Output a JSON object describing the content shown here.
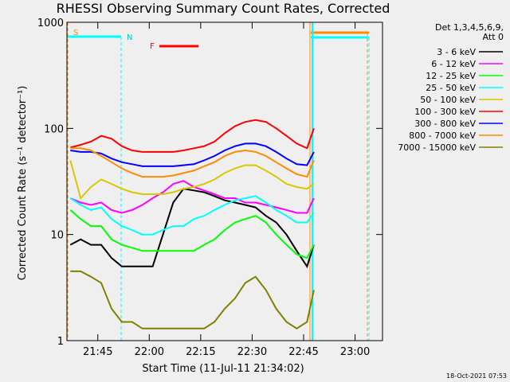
{
  "chart_data": {
    "type": "line",
    "title": "RHESSI Observing Summary Count Rates, Corrected",
    "x_label": "Start Time (11-Jul-11 21:34:02)",
    "y_label": "Corrected Count Rate (s⁻¹ detector⁻¹)",
    "legend_title": [
      "Det 1,3,4,5,6,9,",
      "Att 0"
    ],
    "footer": "18-Oct-2021 07:53",
    "annotations": [
      "S",
      "N",
      "F"
    ],
    "log_y": true,
    "legend": "right",
    "xlim": [
      "21:36",
      "23:08"
    ],
    "xticks": [
      "21:45",
      "22:00",
      "22:15",
      "22:30",
      "22:45",
      "23:00"
    ],
    "ylim": [
      1,
      1000
    ],
    "yticks": [
      1,
      10,
      100,
      1000
    ],
    "x": [
      "21:37",
      "21:40",
      "21:43",
      "21:46",
      "21:49",
      "21:52",
      "21:55",
      "21:58",
      "22:01",
      "22:04",
      "22:07",
      "22:10",
      "22:13",
      "22:16",
      "22:19",
      "22:22",
      "22:25",
      "22:28",
      "22:31",
      "22:34",
      "22:37",
      "22:40",
      "22:43",
      "22:46",
      "22:48"
    ],
    "series": [
      {
        "name": "3 - 6 keV",
        "color": "#000000",
        "values": [
          8,
          9,
          8,
          8,
          6,
          5,
          5,
          5,
          5,
          10,
          20,
          27,
          26,
          25,
          23,
          21,
          20,
          19,
          18,
          15,
          13,
          10,
          7,
          5,
          8
        ]
      },
      {
        "name": "6 - 12 keV",
        "color": "#ff00ff",
        "values": [
          22,
          20,
          19,
          20,
          17,
          16,
          17,
          19,
          22,
          25,
          30,
          32,
          28,
          26,
          24,
          22,
          22,
          20,
          20,
          19,
          18,
          17,
          16,
          16,
          22
        ]
      },
      {
        "name": "12 - 25 keV",
        "color": "#00ff00",
        "values": [
          17,
          14,
          12,
          12,
          9,
          8,
          7.5,
          7,
          7,
          7,
          7,
          7,
          7,
          8,
          9,
          11,
          13,
          14,
          15,
          13,
          10,
          8,
          6.5,
          6,
          8
        ]
      },
      {
        "name": "25 - 50 keV",
        "color": "#00ffff",
        "values": [
          22,
          19,
          17,
          18,
          14,
          12,
          11,
          10,
          10,
          11,
          12,
          12,
          14,
          15,
          17,
          19,
          21,
          22,
          23,
          20,
          17,
          15,
          13,
          13,
          16
        ]
      },
      {
        "name": "50 - 100 keV",
        "color": "#d8c800",
        "values": [
          50,
          22,
          28,
          33,
          30,
          27,
          25,
          24,
          24,
          24,
          25,
          27,
          28,
          30,
          33,
          38,
          42,
          45,
          45,
          40,
          35,
          30,
          28,
          27,
          30
        ]
      },
      {
        "name": "100 - 300 keV",
        "color": "#ff0000",
        "values": [
          66,
          70,
          75,
          85,
          80,
          68,
          62,
          60,
          60,
          60,
          60,
          62,
          65,
          68,
          75,
          90,
          105,
          115,
          120,
          115,
          100,
          85,
          72,
          65,
          100
        ]
      },
      {
        "name": "300 - 800 keV",
        "color": "#0000ff",
        "values": [
          62,
          60,
          60,
          58,
          52,
          48,
          46,
          44,
          44,
          44,
          44,
          45,
          46,
          50,
          55,
          62,
          68,
          72,
          72,
          68,
          60,
          52,
          46,
          45,
          60
        ]
      },
      {
        "name": "800 - 7000 keV",
        "color": "#ff8c00",
        "values": [
          65,
          65,
          62,
          55,
          48,
          42,
          38,
          35,
          35,
          35,
          36,
          38,
          40,
          44,
          48,
          55,
          60,
          62,
          60,
          55,
          48,
          42,
          37,
          35,
          50
        ]
      },
      {
        "name": "7000 - 15000 keV",
        "color": "#808000",
        "values": [
          4.5,
          4.5,
          4,
          3.5,
          2,
          1.5,
          1.5,
          1.3,
          1.3,
          1.3,
          1.3,
          1.3,
          1.3,
          1.3,
          1.5,
          2,
          2.5,
          3.5,
          4,
          3,
          2,
          1.5,
          1.3,
          1.5,
          3
        ]
      }
    ]
  }
}
